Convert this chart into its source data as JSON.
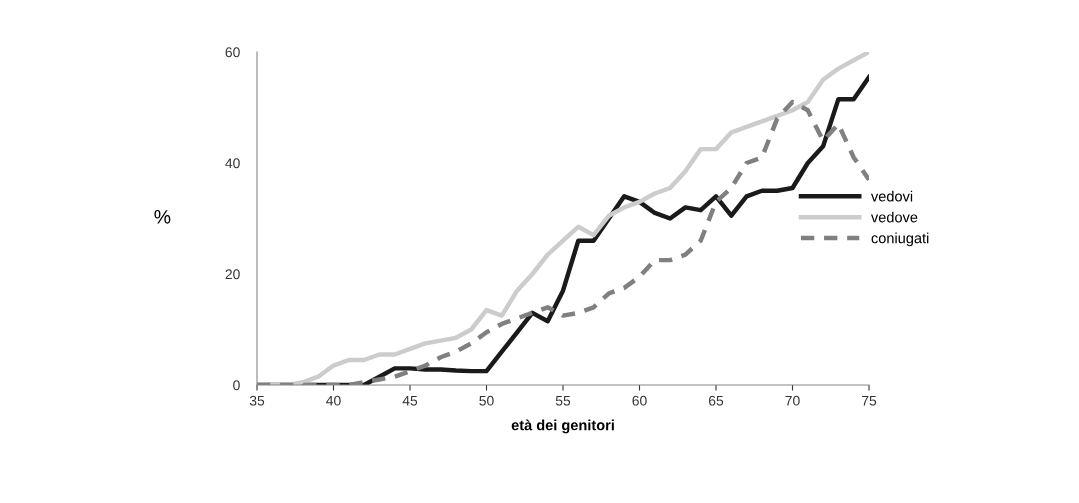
{
  "chart_data": {
    "type": "line",
    "xlabel": "età dei genitori",
    "ylabel": "%",
    "x": [
      35,
      36,
      37,
      38,
      39,
      40,
      41,
      42,
      43,
      44,
      45,
      46,
      47,
      48,
      49,
      50,
      51,
      52,
      53,
      54,
      55,
      56,
      57,
      58,
      59,
      60,
      61,
      62,
      63,
      64,
      65,
      66,
      67,
      68,
      69,
      70,
      71,
      72,
      73,
      74,
      75
    ],
    "series": [
      {
        "name": "vedovi",
        "color": "#1a1a1a",
        "line_style": "solid",
        "values": [
          0,
          0,
          0,
          0,
          0,
          0,
          0,
          0,
          1.5,
          3,
          3,
          2.8,
          2.8,
          2.6,
          2.5,
          2.5,
          6,
          9.5,
          13,
          11.5,
          17,
          26,
          26,
          30,
          34,
          33,
          31,
          30,
          32,
          31.5,
          34,
          30.5,
          34,
          35,
          35,
          35.5,
          40,
          43,
          51.5,
          51.5,
          55.5
        ]
      },
      {
        "name": "vedove",
        "color": "#cccccc",
        "line_style": "solid",
        "values": [
          0,
          0,
          0,
          0.5,
          1.5,
          3.5,
          4.5,
          4.5,
          5.5,
          5.5,
          6.5,
          7.5,
          8,
          8.5,
          10,
          13.5,
          12.5,
          17,
          20,
          23.5,
          26,
          28.5,
          27,
          30.5,
          32,
          33,
          34.5,
          35.5,
          38.5,
          42.5,
          42.5,
          45.5,
          46.5,
          47.5,
          48.5,
          49.5,
          51,
          55,
          57,
          58.5,
          60
        ]
      },
      {
        "name": "coniugati",
        "color": "#808080",
        "line_style": "dashed",
        "values": [
          0,
          0,
          0,
          0,
          0,
          0,
          0,
          0.5,
          1,
          1.5,
          2.5,
          3.5,
          5,
          6,
          7.5,
          9.5,
          11,
          12,
          13,
          14,
          12.5,
          13,
          14,
          16.5,
          17.5,
          19.5,
          22.5,
          22.5,
          23.5,
          26,
          33,
          35.5,
          40,
          41,
          48,
          51,
          49.5,
          44,
          47,
          41,
          37
        ]
      }
    ],
    "xlim": [
      35,
      75
    ],
    "xticks": [
      35,
      40,
      45,
      50,
      55,
      60,
      65,
      70,
      75
    ],
    "ylim": [
      0,
      60
    ],
    "yticks": [
      0,
      20,
      40,
      60
    ],
    "grid": false,
    "legend": "center right",
    "marker": "none"
  }
}
